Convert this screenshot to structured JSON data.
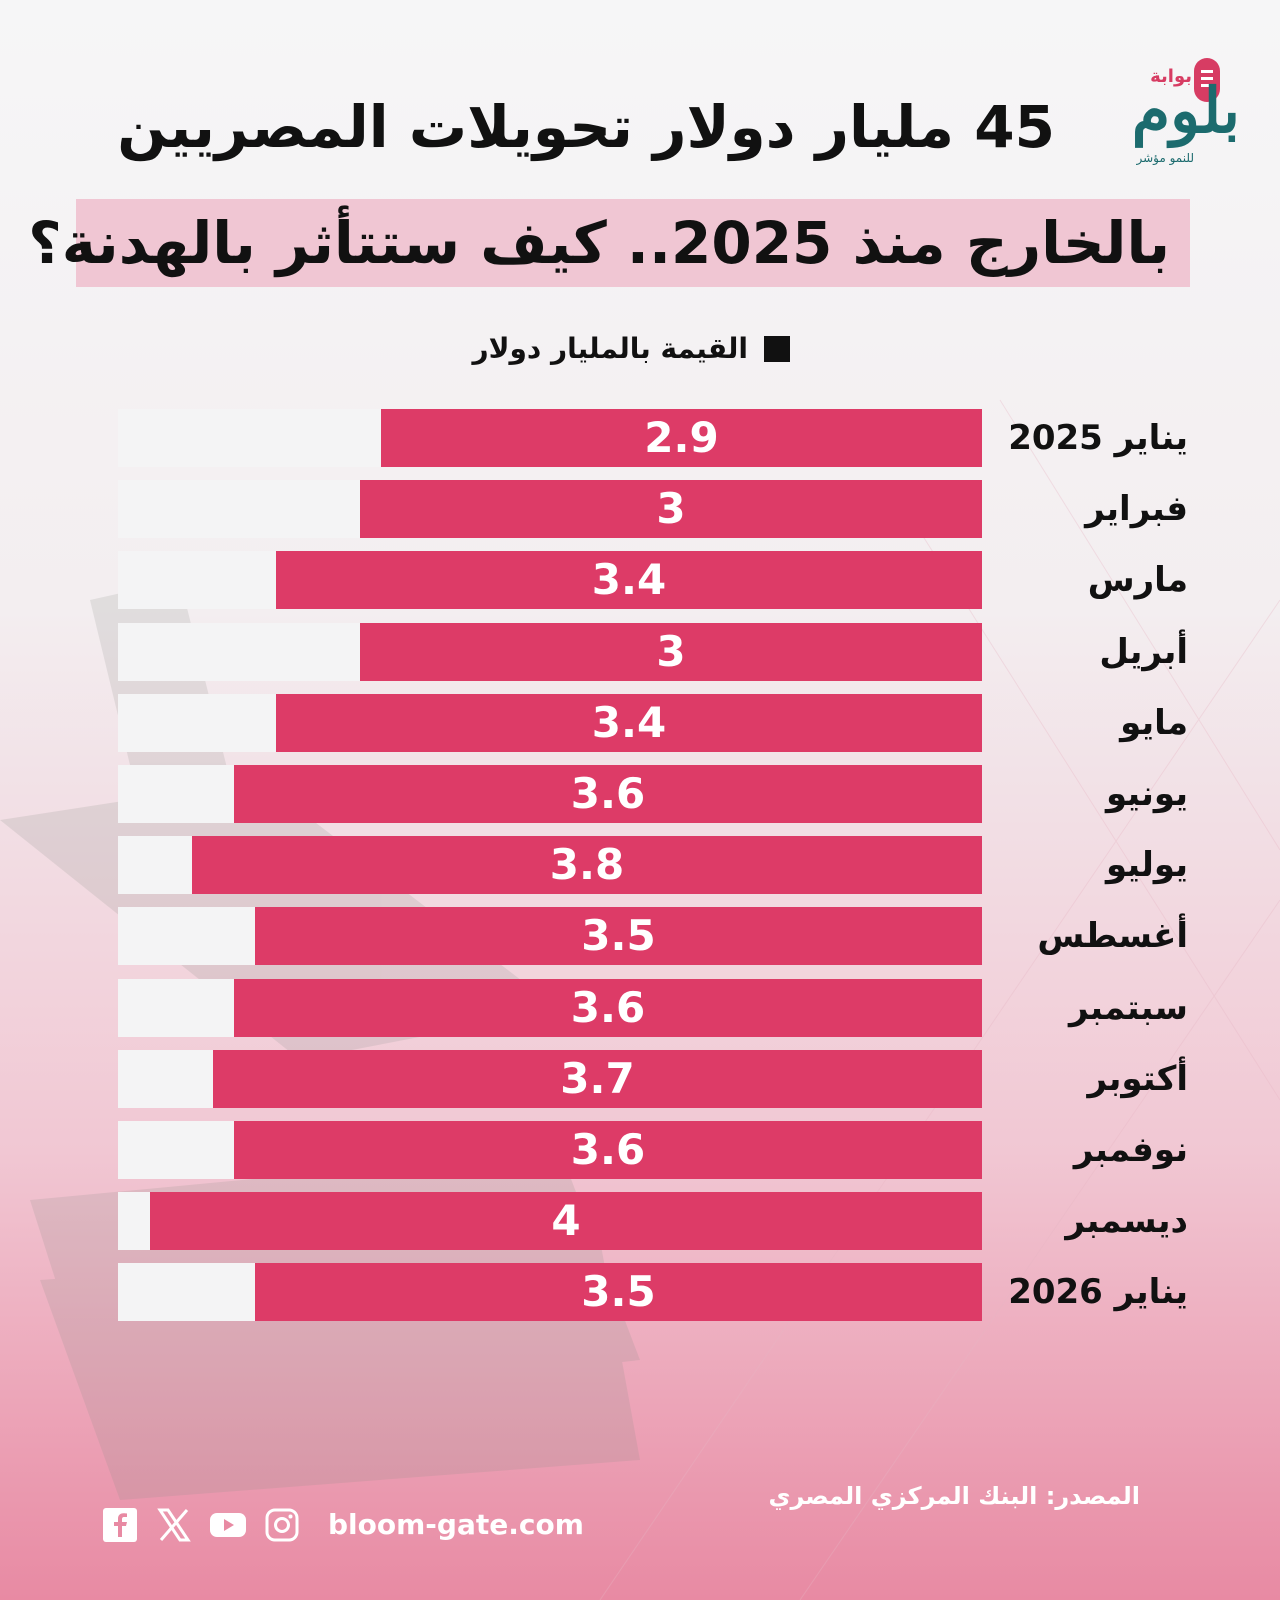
{
  "brand": {
    "small": "بوابة",
    "name": "بلوم",
    "tagline": "للنمو مؤشر"
  },
  "chart_data": {
    "type": "bar",
    "orientation": "horizontal",
    "title": "45 مليار دولار تحويلات المصريين",
    "subtitle": "بالخارج منذ 2025.. كيف ستتأثر بالهدنة؟",
    "legend": "القيمة بالمليار دولار",
    "legend_placement": "top",
    "categories": [
      "يناير 2025",
      "فبراير",
      "مارس",
      "أبريل",
      "مايو",
      "يونيو",
      "يوليو",
      "أغسطس",
      "سبتمبر",
      "أكتوبر",
      "نوفمبر",
      "ديسمبر",
      "يناير 2026"
    ],
    "values": [
      2.9,
      3,
      3.4,
      3,
      3.4,
      3.6,
      3.8,
      3.5,
      3.6,
      3.7,
      3.6,
      4,
      3.5
    ],
    "value_labels": [
      "2.9",
      "3",
      "3.4",
      "3",
      "3.4",
      "3.6",
      "3.8",
      "3.5",
      "3.6",
      "3.7",
      "3.6",
      "4",
      "3.5"
    ],
    "grid": false,
    "colors": {
      "bar": "#dd3b67",
      "track": "#f4f4f5"
    }
  },
  "footer": {
    "source": "المصدر: البنك المركزي المصري",
    "website": "bloom-gate.com",
    "icons": [
      "instagram-icon",
      "youtube-icon",
      "x-icon",
      "facebook-icon"
    ]
  }
}
